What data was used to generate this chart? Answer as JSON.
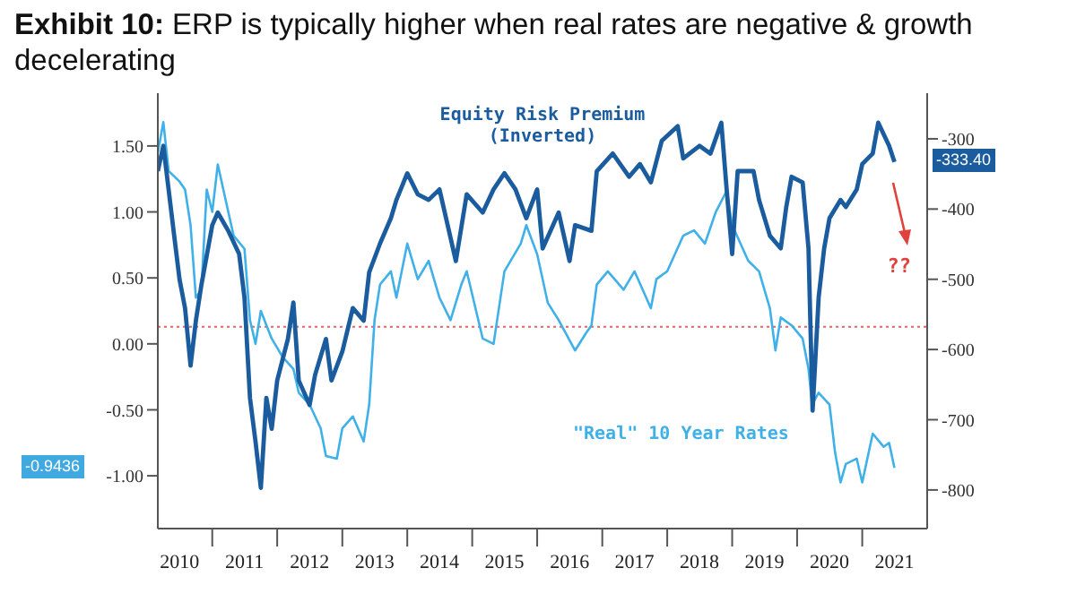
{
  "chart_data": {
    "type": "line",
    "title": "Exhibit 10: ERP is typically higher when real rates are negative & growth decelerating",
    "xlim": [
      "2010-03-01",
      "2022-01-01"
    ],
    "xticks": [
      {
        "value": "2010-07-01",
        "label": "2010"
      },
      {
        "value": "2011-01-01",
        "label": null
      },
      {
        "value": "2011-07-01",
        "label": "2011"
      },
      {
        "value": "2012-01-01",
        "label": null
      },
      {
        "value": "2012-07-01",
        "label": "2012"
      },
      {
        "value": "2013-01-01",
        "label": null
      },
      {
        "value": "2013-07-01",
        "label": "2013"
      },
      {
        "value": "2014-01-01",
        "label": null
      },
      {
        "value": "2014-07-01",
        "label": "2014"
      },
      {
        "value": "2015-01-01",
        "label": null
      },
      {
        "value": "2015-07-01",
        "label": "2015"
      },
      {
        "value": "2016-01-01",
        "label": null
      },
      {
        "value": "2016-07-01",
        "label": "2016"
      },
      {
        "value": "2017-01-01",
        "label": null
      },
      {
        "value": "2017-07-01",
        "label": "2017"
      },
      {
        "value": "2018-01-01",
        "label": null
      },
      {
        "value": "2018-07-01",
        "label": "2018"
      },
      {
        "value": "2019-01-01",
        "label": null
      },
      {
        "value": "2019-07-01",
        "label": "2019"
      },
      {
        "value": "2020-01-01",
        "label": null
      },
      {
        "value": "2020-07-01",
        "label": "2020"
      },
      {
        "value": "2021-01-01",
        "label": null
      },
      {
        "value": "2021-07-01",
        "label": "2021"
      }
    ],
    "ylim": [
      -1.4,
      1.9
    ],
    "yticks": [
      {
        "value": 1.5,
        "label": "1.50"
      },
      {
        "value": 1,
        "label": "1.00"
      },
      {
        "value": 0.5,
        "label": "0.50"
      },
      {
        "value": 0,
        "label": "0.00"
      },
      {
        "value": -0.5,
        "label": "-0.50"
      },
      {
        "value": -1,
        "label": "-1.00"
      }
    ],
    "y2lim": [
      -855,
      -235
    ],
    "y2ticks": [
      -300,
      -400,
      -500,
      -600,
      -700,
      -800
    ],
    "grid": false,
    "legend": false,
    "marker": "none",
    "ref_lines": [
      {
        "axis": "y",
        "value": 0.13,
        "color": "#e06666",
        "line_style": "dotted"
      }
    ],
    "annotations": [
      "-0.9436",
      "-333.40",
      "??"
    ],
    "series": [
      {
        "name": "\"Real\" 10 Year Rates",
        "color": "#3fb0e8",
        "x": [
          "2010-03",
          "2010-04",
          "2010-05",
          "2010-07",
          "2010-08",
          "2010-09",
          "2010-10",
          "2010-11",
          "2010-12",
          "2011-01",
          "2011-02",
          "2011-04",
          "2011-05",
          "2011-07",
          "2011-08",
          "2011-09",
          "2011-10",
          "2011-12",
          "2012-02",
          "2012-04",
          "2012-05",
          "2012-07",
          "2012-09",
          "2012-10",
          "2012-12",
          "2013-01",
          "2013-03",
          "2013-05",
          "2013-06",
          "2013-07",
          "2013-08",
          "2013-10",
          "2013-11",
          "2014-01",
          "2014-03",
          "2014-05",
          "2014-07",
          "2014-09",
          "2014-11",
          "2014-12",
          "2015-03",
          "2015-05",
          "2015-07",
          "2015-10",
          "2015-11",
          "2016-01",
          "2016-03",
          "2016-05",
          "2016-08",
          "2016-10",
          "2016-11",
          "2016-12",
          "2017-02",
          "2017-05",
          "2017-07",
          "2017-10",
          "2017-11",
          "2018-01",
          "2018-04",
          "2018-06",
          "2018-08",
          "2018-10",
          "2018-12",
          "2019-01",
          "2019-04",
          "2019-06",
          "2019-08",
          "2019-09",
          "2019-10",
          "2019-12",
          "2020-02",
          "2020-03-05",
          "2020-03-25",
          "2020-05",
          "2020-07",
          "2020-08",
          "2020-09",
          "2020-10",
          "2020-12",
          "2021-01",
          "2021-03",
          "2021-05",
          "2021-06",
          "2021-07"
        ],
        "values": [
          1.45,
          1.68,
          1.31,
          1.23,
          1.17,
          0.9,
          0.35,
          0.41,
          1.17,
          1.0,
          1.36,
          1.0,
          0.82,
          0.72,
          0.18,
          0.0,
          0.25,
          0.04,
          -0.1,
          -0.19,
          -0.37,
          -0.46,
          -0.64,
          -0.85,
          -0.87,
          -0.64,
          -0.55,
          -0.74,
          -0.46,
          0.18,
          0.45,
          0.55,
          0.35,
          0.76,
          0.49,
          0.63,
          0.35,
          0.18,
          0.45,
          0.55,
          0.04,
          0.0,
          0.55,
          0.76,
          0.9,
          0.68,
          0.31,
          0.18,
          -0.05,
          0.08,
          0.14,
          0.45,
          0.55,
          0.41,
          0.55,
          0.27,
          0.49,
          0.55,
          0.82,
          0.86,
          0.76,
          1.0,
          1.16,
          0.9,
          0.63,
          0.55,
          0.27,
          -0.05,
          0.2,
          0.14,
          0.04,
          -0.19,
          -0.46,
          -0.37,
          -0.46,
          -0.82,
          -1.05,
          -0.91,
          -0.87,
          -1.05,
          -0.68,
          -0.78,
          -0.75,
          -0.94
        ]
      },
      {
        "name": "Equity Risk Premium (Inverted)",
        "color": "#1a5c9e",
        "axis": "y2",
        "x": [
          "2010-03",
          "2010-04",
          "2010-06",
          "2010-07",
          "2010-08",
          "2010-09",
          "2010-10",
          "2010-11",
          "2011-01",
          "2011-02",
          "2011-04",
          "2011-06",
          "2011-07",
          "2011-08",
          "2011-09",
          "2011-10",
          "2011-11",
          "2011-12",
          "2012-01",
          "2012-03",
          "2012-04",
          "2012-05",
          "2012-07",
          "2012-08",
          "2012-10",
          "2012-11",
          "2013-01",
          "2013-03",
          "2013-05",
          "2013-06",
          "2013-08",
          "2013-10",
          "2013-11",
          "2014-01",
          "2014-03",
          "2014-05",
          "2014-07",
          "2014-10",
          "2014-12",
          "2015-03",
          "2015-05",
          "2015-07",
          "2015-09",
          "2015-11",
          "2016-01",
          "2016-02",
          "2016-05",
          "2016-07",
          "2016-08",
          "2016-11",
          "2016-12",
          "2017-03",
          "2017-06",
          "2017-08",
          "2017-10",
          "2017-12",
          "2018-03",
          "2018-04",
          "2018-07",
          "2018-09",
          "2018-11",
          "2018-12",
          "2019-01",
          "2019-02",
          "2019-05",
          "2019-06",
          "2019-08",
          "2019-10",
          "2019-11",
          "2019-12",
          "2020-02",
          "2020-03-05",
          "2020-03-28",
          "2020-05",
          "2020-06",
          "2020-07",
          "2020-09",
          "2020-10",
          "2020-12",
          "2021-01",
          "2021-03",
          "2021-04",
          "2021-06",
          "2021-07"
        ],
        "values": [
          -346,
          -310,
          -438,
          -500,
          -541,
          -623,
          -559,
          -508,
          -423,
          -405,
          -431,
          -464,
          -526,
          -669,
          -731,
          -797,
          -669,
          -713,
          -644,
          -585,
          -533,
          -644,
          -679,
          -636,
          -585,
          -644,
          -603,
          -541,
          -559,
          -490,
          -449,
          -413,
          -387,
          -349,
          -379,
          -387,
          -372,
          -474,
          -379,
          -405,
          -372,
          -349,
          -372,
          -413,
          -372,
          -456,
          -405,
          -474,
          -423,
          -431,
          -346,
          -321,
          -354,
          -336,
          -362,
          -303,
          -282,
          -328,
          -310,
          -321,
          -277,
          -372,
          -464,
          -346,
          -346,
          -387,
          -438,
          -456,
          -397,
          -354,
          -362,
          -456,
          -687,
          -526,
          -456,
          -413,
          -387,
          -397,
          -372,
          -336,
          -321,
          -277,
          -310,
          -333
        ]
      }
    ]
  }
}
